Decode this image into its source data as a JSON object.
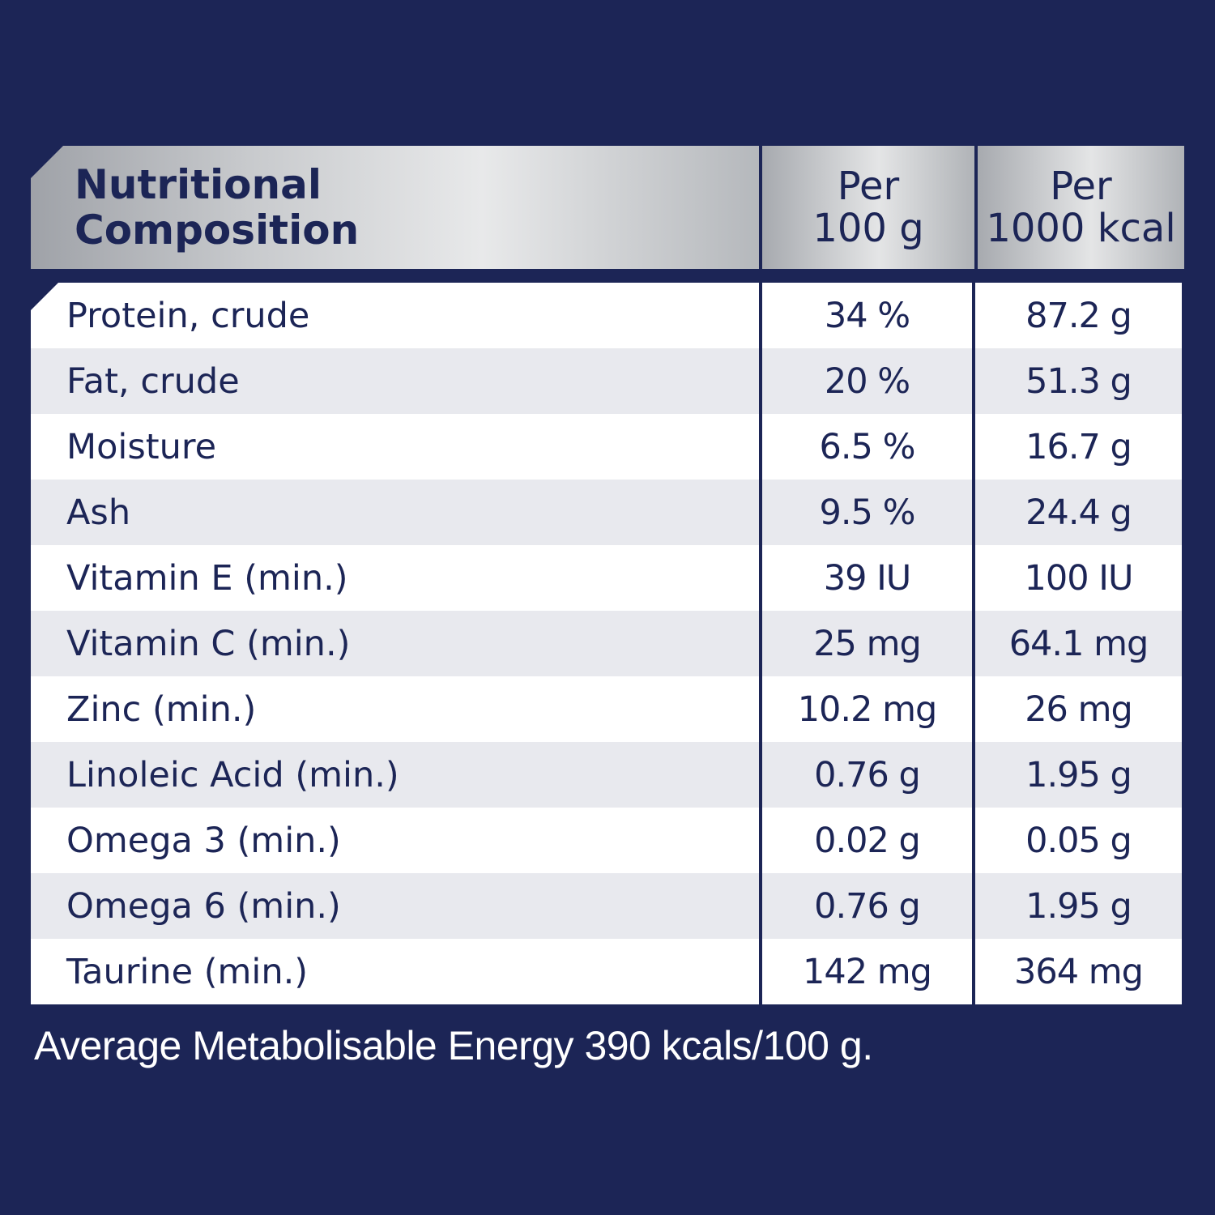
{
  "header": {
    "label_line1": "Nutritional",
    "label_line2": "Composition",
    "col1_line1": "Per",
    "col1_line2": "100 g",
    "col2_line1": "Per",
    "col2_line2": "1000 kcal"
  },
  "rows": [
    {
      "label": "Protein, crude",
      "per_100g": "34 %",
      "per_1000kcal": "87.2 g"
    },
    {
      "label": "Fat, crude",
      "per_100g": "20 %",
      "per_1000kcal": "51.3 g"
    },
    {
      "label": "Moisture",
      "per_100g": "6.5 %",
      "per_1000kcal": "16.7 g"
    },
    {
      "label": "Ash",
      "per_100g": "9.5 %",
      "per_1000kcal": "24.4 g"
    },
    {
      "label": "Vitamin E (min.)",
      "per_100g": "39 IU",
      "per_1000kcal": "100 IU"
    },
    {
      "label": "Vitamin C (min.)",
      "per_100g": "25 mg",
      "per_1000kcal": "64.1 mg"
    },
    {
      "label": "Zinc (min.)",
      "per_100g": "10.2 mg",
      "per_1000kcal": "26 mg"
    },
    {
      "label": "Linoleic Acid (min.)",
      "per_100g": "0.76 g",
      "per_1000kcal": "1.95 g"
    },
    {
      "label": "Omega 3 (min.)",
      "per_100g": "0.02 g",
      "per_1000kcal": "0.05 g"
    },
    {
      "label": "Omega 6 (min.)",
      "per_100g": "0.76 g",
      "per_1000kcal": "1.95 g"
    },
    {
      "label": "Taurine (min.)",
      "per_100g": "142 mg",
      "per_1000kcal": "364 mg"
    }
  ],
  "footnote": "Average Metabolisable Energy 390 kcals/100 g.",
  "colors": {
    "background": "#1c2556",
    "text": "#1c2556",
    "row_alt": "#e8e9ee",
    "header_silver": "#c8cacd",
    "footnote_text": "#ffffff"
  }
}
